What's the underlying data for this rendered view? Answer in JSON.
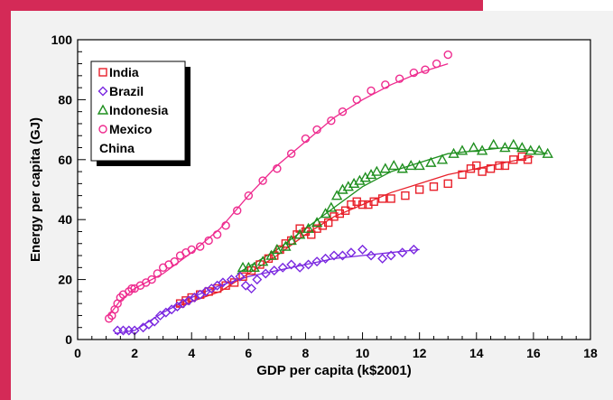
{
  "colors": {
    "frame": "#d42a57",
    "panel": "#f2f2f2",
    "india": "#e8202a",
    "brazil": "#7a28e0",
    "indonesia": "#1f8f1f",
    "mexico": "#ee2a8e"
  },
  "chart_data": {
    "type": "scatter",
    "xlabel": "GDP per capita (k$2001)",
    "ylabel": "Energy per capita (GJ)",
    "xlim": [
      0,
      18
    ],
    "ylim": [
      0,
      100
    ],
    "xticks": [
      "0",
      "2",
      "4",
      "6",
      "8",
      "10",
      "12",
      "14",
      "16",
      "18"
    ],
    "yticks": [
      "0",
      "20",
      "40",
      "60",
      "80",
      "100"
    ],
    "grid": false,
    "legend": {
      "placement": "top-left",
      "entries": [
        {
          "label": "India",
          "marker": "square",
          "color": "india"
        },
        {
          "label": "Brazil",
          "marker": "diamond",
          "color": "brazil"
        },
        {
          "label": "Indonesia",
          "marker": "triangle",
          "color": "indonesia"
        },
        {
          "label": "Mexico",
          "marker": "circle",
          "color": "mexico"
        },
        {
          "label": "China",
          "marker": "none",
          "color": ""
        }
      ]
    },
    "series": [
      {
        "name": "India",
        "marker": "square",
        "color": "india",
        "points": [
          [
            3.6,
            12
          ],
          [
            3.8,
            13
          ],
          [
            4.0,
            14
          ],
          [
            4.3,
            15
          ],
          [
            4.6,
            16
          ],
          [
            4.9,
            17
          ],
          [
            5.2,
            18
          ],
          [
            5.5,
            19
          ],
          [
            5.8,
            21
          ],
          [
            6.1,
            23
          ],
          [
            6.4,
            25
          ],
          [
            6.7,
            27
          ],
          [
            6.9,
            28
          ],
          [
            7.1,
            30
          ],
          [
            7.3,
            32
          ],
          [
            7.5,
            33
          ],
          [
            7.7,
            35
          ],
          [
            7.8,
            37
          ],
          [
            8.0,
            36
          ],
          [
            8.2,
            35
          ],
          [
            8.4,
            37
          ],
          [
            8.6,
            38
          ],
          [
            8.8,
            39
          ],
          [
            9.0,
            41
          ],
          [
            9.2,
            42
          ],
          [
            9.4,
            43
          ],
          [
            9.6,
            45
          ],
          [
            9.8,
            46
          ],
          [
            10.0,
            45
          ],
          [
            10.2,
            45
          ],
          [
            10.4,
            46
          ],
          [
            10.7,
            47
          ],
          [
            11.0,
            47
          ],
          [
            11.5,
            48
          ],
          [
            12.0,
            50
          ],
          [
            12.5,
            51
          ],
          [
            13.0,
            52
          ],
          [
            13.5,
            55
          ],
          [
            13.8,
            57
          ],
          [
            14.0,
            58
          ],
          [
            14.2,
            56
          ],
          [
            14.5,
            57
          ],
          [
            14.8,
            58
          ],
          [
            15.0,
            58
          ],
          [
            15.3,
            60
          ],
          [
            15.6,
            61
          ],
          [
            15.8,
            60
          ]
        ],
        "fit": [
          [
            3.5,
            11
          ],
          [
            5,
            16
          ],
          [
            6,
            22
          ],
          [
            7,
            28
          ],
          [
            8,
            35
          ],
          [
            9,
            41
          ],
          [
            10,
            45
          ],
          [
            11,
            49
          ],
          [
            12,
            52
          ],
          [
            13,
            55
          ],
          [
            14,
            57
          ],
          [
            15,
            59
          ],
          [
            16,
            61
          ]
        ]
      },
      {
        "name": "Brazil",
        "marker": "diamond",
        "color": "brazil",
        "points": [
          [
            1.4,
            3
          ],
          [
            1.6,
            3
          ],
          [
            1.8,
            3
          ],
          [
            2.0,
            3
          ],
          [
            2.3,
            4
          ],
          [
            2.5,
            5
          ],
          [
            2.7,
            6
          ],
          [
            2.9,
            8
          ],
          [
            3.1,
            9
          ],
          [
            3.3,
            10
          ],
          [
            3.5,
            11
          ],
          [
            3.7,
            12
          ],
          [
            3.9,
            13
          ],
          [
            4.1,
            14
          ],
          [
            4.3,
            15
          ],
          [
            4.5,
            16
          ],
          [
            4.7,
            17
          ],
          [
            4.9,
            18
          ],
          [
            5.1,
            19
          ],
          [
            5.4,
            20
          ],
          [
            5.7,
            21
          ],
          [
            5.9,
            18
          ],
          [
            6.1,
            17
          ],
          [
            6.3,
            20
          ],
          [
            6.6,
            22
          ],
          [
            6.9,
            23
          ],
          [
            7.2,
            24
          ],
          [
            7.5,
            25
          ],
          [
            7.8,
            24
          ],
          [
            8.1,
            25
          ],
          [
            8.4,
            26
          ],
          [
            8.7,
            27
          ],
          [
            9.0,
            28
          ],
          [
            9.3,
            28
          ],
          [
            9.6,
            29
          ],
          [
            10.0,
            30
          ],
          [
            10.3,
            28
          ],
          [
            10.7,
            27
          ],
          [
            11.0,
            28
          ],
          [
            11.4,
            29
          ],
          [
            11.8,
            30
          ]
        ],
        "fit": [
          [
            1.3,
            2
          ],
          [
            2,
            3
          ],
          [
            3,
            9
          ],
          [
            4,
            14
          ],
          [
            5,
            18
          ],
          [
            6,
            21
          ],
          [
            7,
            23
          ],
          [
            8,
            25
          ],
          [
            9,
            27
          ],
          [
            10,
            28
          ],
          [
            11,
            29
          ],
          [
            12,
            30
          ]
        ]
      },
      {
        "name": "Indonesia",
        "marker": "triangle",
        "color": "indonesia",
        "points": [
          [
            5.8,
            24
          ],
          [
            6.0,
            24
          ],
          [
            6.2,
            24
          ],
          [
            6.5,
            26
          ],
          [
            6.8,
            28
          ],
          [
            7.0,
            30
          ],
          [
            7.3,
            31
          ],
          [
            7.5,
            33
          ],
          [
            7.8,
            35
          ],
          [
            8.1,
            37
          ],
          [
            8.4,
            39
          ],
          [
            8.7,
            42
          ],
          [
            8.9,
            44
          ],
          [
            9.1,
            48
          ],
          [
            9.3,
            50
          ],
          [
            9.5,
            51
          ],
          [
            9.7,
            52
          ],
          [
            9.9,
            53
          ],
          [
            10.1,
            54
          ],
          [
            10.3,
            55
          ],
          [
            10.5,
            56
          ],
          [
            10.8,
            57
          ],
          [
            11.1,
            58
          ],
          [
            11.4,
            57
          ],
          [
            11.7,
            58
          ],
          [
            12.0,
            58
          ],
          [
            12.4,
            59
          ],
          [
            12.8,
            60
          ],
          [
            13.2,
            62
          ],
          [
            13.5,
            63
          ],
          [
            13.9,
            64
          ],
          [
            14.2,
            63
          ],
          [
            14.6,
            65
          ],
          [
            15.0,
            64
          ],
          [
            15.3,
            65
          ],
          [
            15.6,
            64
          ],
          [
            15.9,
            63
          ],
          [
            16.2,
            63
          ],
          [
            16.5,
            62
          ]
        ],
        "fit": [
          [
            5.6,
            22
          ],
          [
            7,
            30
          ],
          [
            8,
            37
          ],
          [
            9,
            44
          ],
          [
            10,
            51
          ],
          [
            11,
            56
          ],
          [
            12,
            59
          ],
          [
            13,
            62
          ],
          [
            14,
            63
          ],
          [
            15,
            64
          ],
          [
            16,
            63
          ],
          [
            16.5,
            62
          ]
        ]
      },
      {
        "name": "Mexico",
        "marker": "circle",
        "color": "mexico",
        "points": [
          [
            1.1,
            7
          ],
          [
            1.2,
            8
          ],
          [
            1.3,
            10
          ],
          [
            1.4,
            12
          ],
          [
            1.5,
            14
          ],
          [
            1.6,
            15
          ],
          [
            1.8,
            16
          ],
          [
            1.9,
            17
          ],
          [
            2.0,
            17
          ],
          [
            2.2,
            18
          ],
          [
            2.4,
            19
          ],
          [
            2.6,
            20
          ],
          [
            2.8,
            22
          ],
          [
            3.0,
            24
          ],
          [
            3.2,
            25
          ],
          [
            3.4,
            26
          ],
          [
            3.6,
            28
          ],
          [
            3.8,
            29
          ],
          [
            4.0,
            30
          ],
          [
            4.3,
            31
          ],
          [
            4.6,
            33
          ],
          [
            4.9,
            35
          ],
          [
            5.2,
            38
          ],
          [
            5.6,
            43
          ],
          [
            6.0,
            48
          ],
          [
            6.5,
            53
          ],
          [
            7.0,
            57
          ],
          [
            7.5,
            62
          ],
          [
            8.0,
            67
          ],
          [
            8.4,
            70
          ],
          [
            8.9,
            73
          ],
          [
            9.3,
            76
          ],
          [
            9.8,
            80
          ],
          [
            10.3,
            83
          ],
          [
            10.8,
            85
          ],
          [
            11.3,
            87
          ],
          [
            11.8,
            89
          ],
          [
            12.2,
            90
          ],
          [
            12.6,
            92
          ],
          [
            13.0,
            95
          ]
        ],
        "fit": [
          [
            1.1,
            8
          ],
          [
            1.5,
            13
          ],
          [
            2,
            17
          ],
          [
            3,
            22
          ],
          [
            4,
            29
          ],
          [
            5,
            37
          ],
          [
            6,
            48
          ],
          [
            7,
            58
          ],
          [
            8,
            66
          ],
          [
            9,
            74
          ],
          [
            10,
            80
          ],
          [
            11,
            85
          ],
          [
            12,
            89
          ],
          [
            13,
            92
          ]
        ]
      }
    ]
  }
}
